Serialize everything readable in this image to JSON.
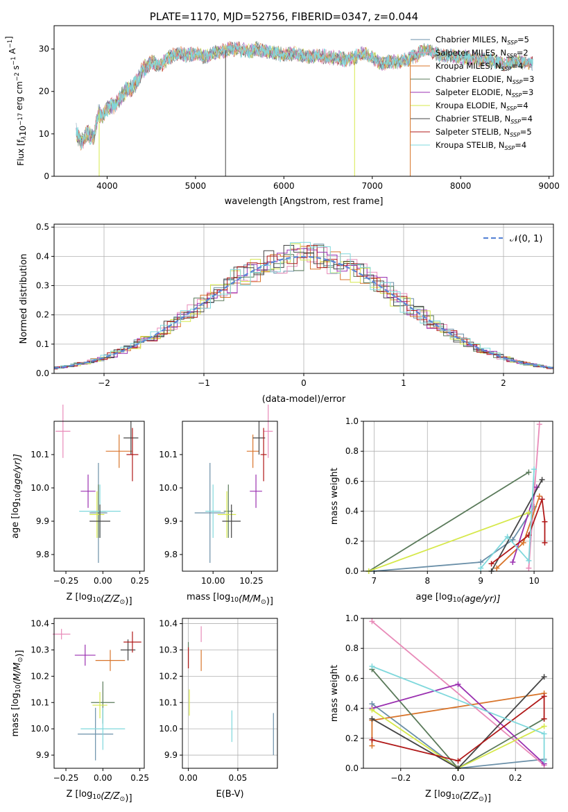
{
  "figure_title": "PLATE=1170, MJD=52756, FIBERID=0347, z=0.044",
  "colors": {
    "s0": "#6a8fa8",
    "s1": "#e88ab8",
    "s2": "#d8742a",
    "s3": "#5a7a5a",
    "s4": "#9a2fb0",
    "s5": "#d6e84a",
    "s6": "#444444",
    "s7": "#b01818",
    "s8": "#7fd8dc",
    "gaussian": "#5b86d6",
    "spectrum_main": "#7fd8dc",
    "spectrum_shade": "#555555"
  },
  "legend_main": [
    {
      "imf": "Chabrier",
      "lib": "MILES",
      "n": "5"
    },
    {
      "imf": "Salpeter",
      "lib": "MILES",
      "n": "2"
    },
    {
      "imf": "Kroupa",
      "lib": "MILES",
      "n": "4"
    },
    {
      "imf": "Chabrier",
      "lib": "ELODIE",
      "n": "3"
    },
    {
      "imf": "Salpeter",
      "lib": "ELODIE",
      "n": "3"
    },
    {
      "imf": "Kroupa",
      "lib": "ELODIE",
      "n": "4"
    },
    {
      "imf": "Chabrier",
      "lib": "STELIB",
      "n": "4"
    },
    {
      "imf": "Salpeter",
      "lib": "STELIB",
      "n": "5"
    },
    {
      "imf": "Kroupa",
      "lib": "STELIB",
      "n": "4"
    }
  ],
  "chart_data": [
    {
      "id": "spectrum",
      "type": "line",
      "title": "PLATE=1170, MJD=52756, FIBERID=0347, z=0.044",
      "xlabel": "wavelength [Angstrom, rest frame]",
      "ylabel_main": "Flux [f",
      "ylabel_sub": "λ",
      "ylabel_rest": "10",
      "ylabel_exp": "−17",
      "ylabel_units": " erg cm",
      "ylabel_exp2": "−2",
      "ylabel_s": " s",
      "ylabel_exp3": "−1",
      "ylabel_A": " A",
      "ylabel_exp4": "−1",
      "ylabel_end": "]",
      "xlim": [
        3400,
        9050
      ],
      "ylim": [
        0,
        35.5
      ],
      "xticks": [
        "4000",
        "5000",
        "6000",
        "7000",
        "8000",
        "9000"
      ],
      "yticks": [
        "0",
        "10",
        "20",
        "30"
      ],
      "continuum": [
        [
          3650,
          10.5
        ],
        [
          3700,
          8
        ],
        [
          3780,
          10
        ],
        [
          3850,
          9
        ],
        [
          3900,
          15
        ],
        [
          3950,
          14
        ],
        [
          4000,
          16
        ],
        [
          4100,
          17
        ],
        [
          4200,
          20
        ],
        [
          4300,
          21
        ],
        [
          4400,
          25
        ],
        [
          4500,
          27
        ],
        [
          4600,
          26
        ],
        [
          4700,
          28
        ],
        [
          4800,
          29
        ],
        [
          4900,
          28.5
        ],
        [
          5000,
          29
        ],
        [
          5100,
          28
        ],
        [
          5200,
          29
        ],
        [
          5300,
          29.5
        ],
        [
          5400,
          30
        ],
        [
          5500,
          30
        ],
        [
          5600,
          29.5
        ],
        [
          5700,
          30
        ],
        [
          5800,
          29.5
        ],
        [
          5900,
          29
        ],
        [
          6000,
          28.5
        ],
        [
          6100,
          29
        ],
        [
          6200,
          28.5
        ],
        [
          6300,
          28
        ],
        [
          6400,
          28.5
        ],
        [
          6500,
          28
        ],
        [
          6600,
          28
        ],
        [
          6700,
          27.5
        ],
        [
          6800,
          28
        ],
        [
          6900,
          29
        ],
        [
          7000,
          28
        ],
        [
          7100,
          26.5
        ],
        [
          7200,
          27
        ],
        [
          7300,
          27
        ],
        [
          7400,
          27.5
        ],
        [
          7500,
          28.5
        ],
        [
          7600,
          30
        ],
        [
          7700,
          29
        ],
        [
          7800,
          28.5
        ],
        [
          7900,
          28.5
        ],
        [
          8000,
          28
        ],
        [
          8100,
          28
        ],
        [
          8200,
          27.5
        ],
        [
          8300,
          27.5
        ],
        [
          8400,
          27
        ],
        [
          8500,
          26.5
        ],
        [
          8600,
          27
        ],
        [
          8700,
          27
        ],
        [
          8820,
          26.5
        ]
      ],
      "dropouts": [
        {
          "x": 3910,
          "series": "s5"
        },
        {
          "x": 5340,
          "series": "s6"
        },
        {
          "x": 6800,
          "series": "s5"
        },
        {
          "x": 7430,
          "series": "s2"
        }
      ]
    },
    {
      "id": "residuals",
      "type": "bar",
      "xlabel": "(data-model)/error",
      "ylabel": "Normed distribution",
      "xlim": [
        -2.5,
        2.5
      ],
      "ylim": [
        0,
        0.51
      ],
      "xticks": [
        "−2",
        "−1",
        "0",
        "1",
        "2"
      ],
      "yticks": [
        "0.0",
        "0.1",
        "0.2",
        "0.3",
        "0.4",
        "0.5"
      ],
      "legend": "𝒩(0, 1)",
      "bin_width": 0.1
    },
    {
      "id": "age_vs_Z",
      "type": "scatter",
      "xlabel": "Z [log",
      "xlabel_sub": "10",
      "xlabel_rest": "(Z/Z",
      "xlabel_sun": "⊙",
      "xlabel_end": ")]",
      "ylabel": "age  [log",
      "ylabel_sub": "10",
      "ylabel_rest": "(age/yr)]",
      "xlim": [
        -0.33,
        0.28
      ],
      "ylim": [
        9.75,
        10.2
      ],
      "xticks": [
        "−0.25",
        "0.00",
        "0.25"
      ],
      "yticks": [
        "9.8",
        "9.9",
        "10.0",
        "10.1"
      ],
      "points": [
        {
          "s": "s0",
          "x": -0.03,
          "y": 9.925,
          "xe": 0.06,
          "ye": 0.15
        },
        {
          "s": "s1",
          "x": -0.27,
          "y": 10.17,
          "xe": 0.05,
          "ye": 0.08
        },
        {
          "s": "s2",
          "x": 0.11,
          "y": 10.11,
          "xe": 0.09,
          "ye": 0.05
        },
        {
          "s": "s3",
          "x": -0.03,
          "y": 9.93,
          "xe": 0.05,
          "ye": 0.08
        },
        {
          "s": "s4",
          "x": -0.1,
          "y": 9.99,
          "xe": 0.05,
          "ye": 0.05
        },
        {
          "s": "s5",
          "x": -0.04,
          "y": 9.92,
          "xe": 0.05,
          "ye": 0.07
        },
        {
          "s": "s6",
          "x": 0.19,
          "y": 10.15,
          "xe": 0.05,
          "ye": 0.05
        },
        {
          "s": "s7",
          "x": 0.2,
          "y": 10.1,
          "xe": 0.04,
          "ye": 0.08
        },
        {
          "s": "s8",
          "x": -0.02,
          "y": 9.93,
          "xe": 0.14,
          "ye": 0.08
        }
      ],
      "extra_points": [
        {
          "s": "s6",
          "x": -0.02,
          "y": 9.9,
          "xe": 0.07,
          "ye": 0.05
        }
      ]
    },
    {
      "id": "age_vs_mass",
      "type": "scatter",
      "xlabel": "mass [log",
      "xlabel_sub": "10",
      "xlabel_rest": "(M/M",
      "xlabel_sun": "⊙",
      "xlabel_end": ")]",
      "xlim": [
        9.8,
        10.42
      ],
      "ylim": [
        9.75,
        10.2
      ],
      "xticks": [
        "10.00",
        "10.25"
      ],
      "yticks": [
        "9.8",
        "9.9",
        "10.0",
        "10.1"
      ],
      "points": [
        {
          "s": "s0",
          "x": 9.98,
          "y": 9.925,
          "xe": 0.1,
          "ye": 0.15
        },
        {
          "s": "s1",
          "x": 10.36,
          "y": 10.17,
          "xe": 0.03,
          "ye": 0.08
        },
        {
          "s": "s2",
          "x": 10.26,
          "y": 10.11,
          "xe": 0.04,
          "ye": 0.05
        },
        {
          "s": "s3",
          "x": 10.1,
          "y": 9.93,
          "xe": 0.03,
          "ye": 0.08
        },
        {
          "s": "s4",
          "x": 10.28,
          "y": 9.99,
          "xe": 0.04,
          "ye": 0.05
        },
        {
          "s": "s5",
          "x": 10.09,
          "y": 9.92,
          "xe": 0.06,
          "ye": 0.07
        },
        {
          "s": "s6",
          "x": 10.3,
          "y": 10.15,
          "xe": 0.04,
          "ye": 0.05
        },
        {
          "s": "s7",
          "x": 10.33,
          "y": 10.1,
          "xe": 0.02,
          "ye": 0.08
        },
        {
          "s": "s8",
          "x": 10.0,
          "y": 9.93,
          "xe": 0.05,
          "ye": 0.08
        }
      ],
      "extra_points": [
        {
          "s": "s6",
          "x": 10.12,
          "y": 9.9,
          "xe": 0.06,
          "ye": 0.05
        }
      ]
    },
    {
      "id": "weight_vs_age",
      "type": "line",
      "xlabel": "age  [log",
      "xlabel_sub": "10",
      "xlabel_rest": "(age/yr)]",
      "ylabel": "mass weight",
      "xlim": [
        6.8,
        10.35
      ],
      "ylim": [
        0,
        1.0
      ],
      "xticks": [
        "7",
        "8",
        "9",
        "10"
      ],
      "yticks": [
        "0.0",
        "0.2",
        "0.4",
        "0.6",
        "0.8",
        "1.0"
      ],
      "series": [
        {
          "s": "s0",
          "pts": [
            [
              7.0,
              0.0
            ],
            [
              9.0,
              0.06
            ],
            [
              9.6,
              0.21
            ],
            [
              10.0,
              0.43
            ]
          ]
        },
        {
          "s": "s1",
          "pts": [
            [
              9.9,
              0.02
            ],
            [
              10.1,
              0.98
            ]
          ]
        },
        {
          "s": "s2",
          "pts": [
            [
              9.3,
              0.02
            ],
            [
              9.8,
              0.19
            ],
            [
              10.1,
              0.5
            ]
          ]
        },
        {
          "s": "s3",
          "pts": [
            [
              6.9,
              0.0
            ],
            [
              9.9,
              0.66
            ]
          ]
        },
        {
          "s": "s4",
          "pts": [
            [
              9.6,
              0.06
            ],
            [
              10.05,
              0.56
            ]
          ]
        },
        {
          "s": "s5",
          "pts": [
            [
              6.9,
              0.0
            ],
            [
              9.9,
              0.39
            ]
          ]
        },
        {
          "s": "s6",
          "pts": [
            [
              9.2,
              0.0
            ],
            [
              10.15,
              0.61
            ]
          ]
        },
        {
          "s": "s7",
          "pts": [
            [
              9.2,
              0.05
            ],
            [
              9.9,
              0.24
            ],
            [
              10.15,
              0.48
            ],
            [
              10.2,
              0.33
            ],
            [
              10.2,
              0.19
            ]
          ]
        },
        {
          "s": "s8",
          "pts": [
            [
              9.0,
              0.02
            ],
            [
              9.5,
              0.23
            ],
            [
              9.9,
              0.07
            ],
            [
              10.0,
              0.68
            ]
          ]
        }
      ]
    },
    {
      "id": "mass_vs_Z",
      "type": "scatter",
      "xlabel": "Z [log",
      "xlabel_sub": "10",
      "xlabel_rest": "(Z/Z",
      "xlabel_sun": "⊙",
      "xlabel_end": ")]",
      "ylabel": "mass [log",
      "ylabel_sub": "10",
      "ylabel_rest": "(M/M",
      "ylabel_sun": "⊙",
      "ylabel_end": ")]",
      "xlim": [
        -0.33,
        0.28
      ],
      "ylim": [
        9.85,
        10.42
      ],
      "xticks": [
        "−0.25",
        "0.00",
        "0.25"
      ],
      "yticks": [
        "9.9",
        "10.0",
        "10.1",
        "10.2",
        "10.3",
        "10.4"
      ],
      "points": [
        {
          "s": "s0",
          "x": -0.05,
          "y": 9.98,
          "xe": 0.12,
          "ye": 0.1
        },
        {
          "s": "s1",
          "x": -0.28,
          "y": 10.36,
          "xe": 0.06,
          "ye": 0.02
        },
        {
          "s": "s2",
          "x": 0.05,
          "y": 10.26,
          "xe": 0.1,
          "ye": 0.04
        },
        {
          "s": "s3",
          "x": 0.0,
          "y": 10.1,
          "xe": 0.08,
          "ye": 0.08
        },
        {
          "s": "s4",
          "x": -0.12,
          "y": 10.28,
          "xe": 0.07,
          "ye": 0.04
        },
        {
          "s": "s5",
          "x": -0.02,
          "y": 10.09,
          "xe": 0.05,
          "ye": 0.05
        },
        {
          "s": "s6",
          "x": 0.17,
          "y": 10.3,
          "xe": 0.05,
          "ye": 0.04
        },
        {
          "s": "s7",
          "x": 0.2,
          "y": 10.33,
          "xe": 0.06,
          "ye": 0.04
        },
        {
          "s": "s8",
          "x": 0.0,
          "y": 10.0,
          "xe": 0.15,
          "ye": 0.08
        }
      ]
    },
    {
      "id": "mass_vs_ebv",
      "type": "scatter",
      "xlabel": "E(B-V)",
      "xlim": [
        -0.006,
        0.09
      ],
      "ylim": [
        9.85,
        10.42
      ],
      "xticks": [
        "0.00",
        "0.05"
      ],
      "yticks": [
        "9.9",
        "10.0",
        "10.1",
        "10.2",
        "10.3",
        "10.4"
      ],
      "points": [
        {
          "s": "s0",
          "x": 0.086,
          "y": 9.98,
          "xe": 0.0,
          "ye": 0.08
        },
        {
          "s": "s1",
          "x": 0.013,
          "y": 10.36,
          "xe": 0.0,
          "ye": 0.03
        },
        {
          "s": "s2",
          "x": 0.013,
          "y": 10.26,
          "xe": 0.0,
          "ye": 0.04
        },
        {
          "s": "s3",
          "x": 0.0,
          "y": 10.28,
          "xe": 0.0,
          "ye": 0.05
        },
        {
          "s": "s5",
          "x": 0.001,
          "y": 10.1,
          "xe": 0.0,
          "ye": 0.05
        },
        {
          "s": "s7",
          "x": 0.0,
          "y": 10.27,
          "xe": 0.0,
          "ye": 0.04
        },
        {
          "s": "s8",
          "x": 0.044,
          "y": 10.01,
          "xe": 0.0,
          "ye": 0.06
        }
      ]
    },
    {
      "id": "weight_vs_Z",
      "type": "line",
      "xlabel": "Z [log",
      "xlabel_sub": "10",
      "xlabel_rest": "(Z/Z",
      "xlabel_sun": "⊙",
      "xlabel_end": ")]",
      "ylabel": "mass weight",
      "xlim": [
        -0.33,
        0.33
      ],
      "ylim": [
        0,
        1.0
      ],
      "xticks": [
        "−0.2",
        "0.0",
        "0.2"
      ],
      "yticks": [
        "0.0",
        "0.2",
        "0.4",
        "0.6",
        "0.8",
        "1.0"
      ],
      "series": [
        {
          "s": "s0",
          "pts": [
            [
              -0.3,
              0.43
            ],
            [
              0.0,
              0.0
            ],
            [
              0.3,
              0.06
            ]
          ]
        },
        {
          "s": "s1",
          "pts": [
            [
              -0.3,
              0.98
            ],
            [
              0.3,
              0.02
            ]
          ]
        },
        {
          "s": "s2",
          "pts": [
            [
              -0.3,
              0.15
            ],
            [
              -0.3,
              0.32
            ],
            [
              0.3,
              0.5
            ]
          ]
        },
        {
          "s": "s3",
          "pts": [
            [
              -0.3,
              0.66
            ],
            [
              0.0,
              0.0
            ],
            [
              0.3,
              0.33
            ]
          ]
        },
        {
          "s": "s4",
          "pts": [
            [
              -0.3,
              0.4
            ],
            [
              0.0,
              0.56
            ],
            [
              0.3,
              0.03
            ]
          ]
        },
        {
          "s": "s5",
          "pts": [
            [
              -0.3,
              0.39
            ],
            [
              0.0,
              0.0
            ],
            [
              0.3,
              0.28
            ]
          ]
        },
        {
          "s": "s6",
          "pts": [
            [
              -0.3,
              0.33
            ],
            [
              0.0,
              0.0
            ],
            [
              0.3,
              0.61
            ]
          ]
        },
        {
          "s": "s7",
          "pts": [
            [
              -0.3,
              0.19
            ],
            [
              0.0,
              0.05
            ],
            [
              0.3,
              0.48
            ],
            [
              0.3,
              0.33
            ]
          ]
        },
        {
          "s": "s8",
          "pts": [
            [
              -0.3,
              0.68
            ],
            [
              0.3,
              0.23
            ],
            [
              0.3,
              0.05
            ]
          ]
        }
      ]
    }
  ]
}
